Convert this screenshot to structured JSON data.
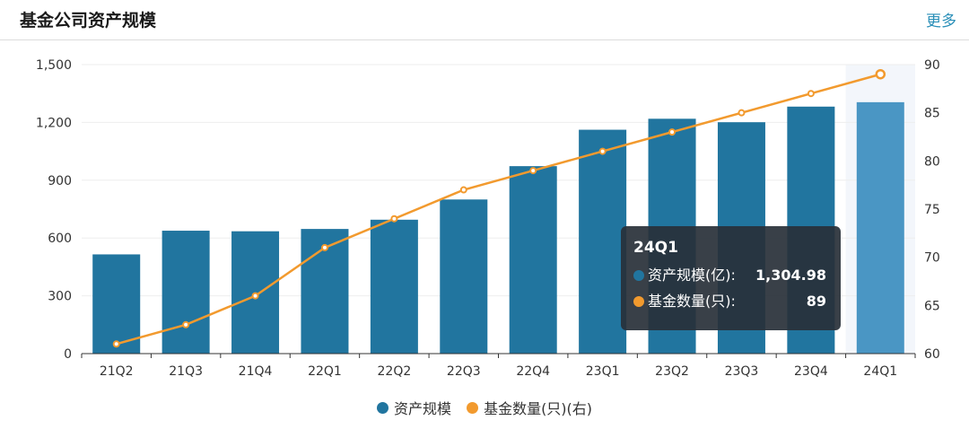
{
  "header": {
    "title": "基金公司资产规模",
    "more_label": "更多"
  },
  "chart_data": {
    "type": "bar",
    "categories": [
      "21Q2",
      "21Q3",
      "21Q4",
      "22Q1",
      "22Q2",
      "22Q3",
      "22Q4",
      "23Q1",
      "23Q2",
      "23Q3",
      "23Q4",
      "24Q1"
    ],
    "series": [
      {
        "name": "资产规模",
        "type": "bar",
        "axis": "left",
        "color": "#21759f",
        "values": [
          515,
          638,
          635,
          647,
          695,
          800,
          973,
          1162,
          1219,
          1201,
          1282,
          1304.98
        ]
      },
      {
        "name": "基金数量(只)(右)",
        "type": "line",
        "axis": "right",
        "color": "#f29a2e",
        "values": [
          61,
          63,
          66,
          71,
          74,
          77,
          79,
          81,
          83,
          85,
          87,
          89
        ]
      }
    ],
    "left_axis": {
      "ticks": [
        "0",
        "300",
        "600",
        "900",
        "1,200",
        "1,500"
      ],
      "ylim": [
        0,
        1500
      ]
    },
    "right_axis": {
      "ticks": [
        "60",
        "65",
        "70",
        "75",
        "80",
        "85",
        "90"
      ],
      "ylim": [
        60,
        90
      ]
    },
    "highlighted_category": "24Q1",
    "highlight_bar_color": "#4a96c4",
    "legend": {
      "placement": "bottom-center"
    },
    "grid": true
  },
  "tooltip": {
    "title": "24Q1",
    "rows": [
      {
        "label": "资产规模(亿):",
        "value": "1,304.98",
        "color": "#21759f"
      },
      {
        "label": "基金数量(只):",
        "value": "89",
        "color": "#f29a2e"
      }
    ]
  }
}
